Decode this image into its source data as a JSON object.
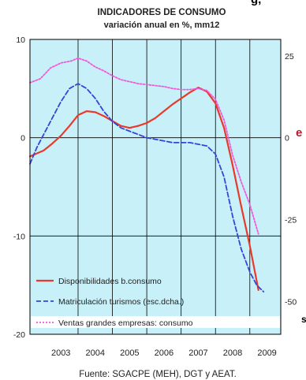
{
  "cut_text": {
    "top": "g,",
    "left": "e",
    "bottom": "s"
  },
  "chart_data": {
    "type": "line",
    "title": "INDICADORES DE CONSUMO",
    "subtitle": "variación anual en %, mm12",
    "source": "Fuente: SGACPE (MEH), DGT y AEAT.",
    "x_ticks": [
      "2003",
      "2004",
      "2005",
      "2006",
      "2007",
      "2008",
      "2009"
    ],
    "x_range": [
      2002.6,
      2009.9
    ],
    "y_left": {
      "range": [
        -20,
        10
      ],
      "ticks": [
        10,
        0,
        -10,
        -20
      ]
    },
    "y_right": {
      "range": [
        -60,
        30
      ],
      "ticks": [
        25,
        0,
        -25,
        -50
      ]
    },
    "plot_background": "#c8f0f8",
    "legend_position": "bottom-left",
    "series": [
      {
        "name": "Disponibilidades b.consumo",
        "axis": "left",
        "color": "#e83a2a",
        "style": "solid",
        "x": [
          2002.6,
          2003.0,
          2003.25,
          2003.5,
          2003.75,
          2004.0,
          2004.25,
          2004.5,
          2004.75,
          2005.0,
          2005.25,
          2005.5,
          2005.75,
          2006.0,
          2006.25,
          2006.5,
          2006.75,
          2007.0,
          2007.25,
          2007.5,
          2007.75,
          2008.0,
          2008.25,
          2008.5,
          2008.75,
          2009.0,
          2009.25
        ],
        "y": [
          -1.9,
          -1.3,
          -0.6,
          0.2,
          1.2,
          2.3,
          2.7,
          2.6,
          2.2,
          1.7,
          1.2,
          1.0,
          1.2,
          1.5,
          2.0,
          2.7,
          3.4,
          4.0,
          4.6,
          5.1,
          4.7,
          3.5,
          1.0,
          -2.8,
          -7.0,
          -11.0,
          -15.5
        ]
      },
      {
        "name": "Matriculación turismos (esc.dcha.)",
        "axis": "right",
        "color": "#3545d8",
        "style": "dashed",
        "x": [
          2002.6,
          2002.8,
          2003.0,
          2003.25,
          2003.5,
          2003.75,
          2004.0,
          2004.25,
          2004.5,
          2004.75,
          2005.0,
          2005.25,
          2005.5,
          2005.75,
          2006.0,
          2006.25,
          2006.5,
          2006.75,
          2007.0,
          2007.25,
          2007.5,
          2007.75,
          2008.0,
          2008.25,
          2008.5,
          2008.75,
          2009.0,
          2009.2,
          2009.4
        ],
        "y": [
          -8,
          -3,
          1,
          6,
          11,
          15,
          16.5,
          15,
          12,
          8,
          5,
          3,
          2,
          1,
          0,
          -0.5,
          -1,
          -1.5,
          -1.5,
          -1.5,
          -2,
          -2.5,
          -5,
          -12,
          -24,
          -34,
          -41,
          -45,
          -47
        ]
      },
      {
        "name": "Ventas grandes empresas: consumo",
        "axis": "left",
        "color": "#f05ad8",
        "style": "dotted",
        "x": [
          2002.6,
          2002.9,
          2003.2,
          2003.5,
          2003.8,
          2004.0,
          2004.25,
          2004.5,
          2004.75,
          2005.0,
          2005.25,
          2005.5,
          2005.75,
          2006.0,
          2006.25,
          2006.5,
          2006.75,
          2007.0,
          2007.25,
          2007.5,
          2007.75,
          2008.0,
          2008.25,
          2008.5,
          2008.75,
          2009.0,
          2009.25
        ],
        "y": [
          5.6,
          6.0,
          7.1,
          7.6,
          7.8,
          8.1,
          7.8,
          7.2,
          6.8,
          6.3,
          5.9,
          5.7,
          5.5,
          5.4,
          5.3,
          5.2,
          5.0,
          4.9,
          4.9,
          5.0,
          4.8,
          3.9,
          1.8,
          -1.8,
          -4.5,
          -6.8,
          -9.8
        ]
      }
    ]
  }
}
